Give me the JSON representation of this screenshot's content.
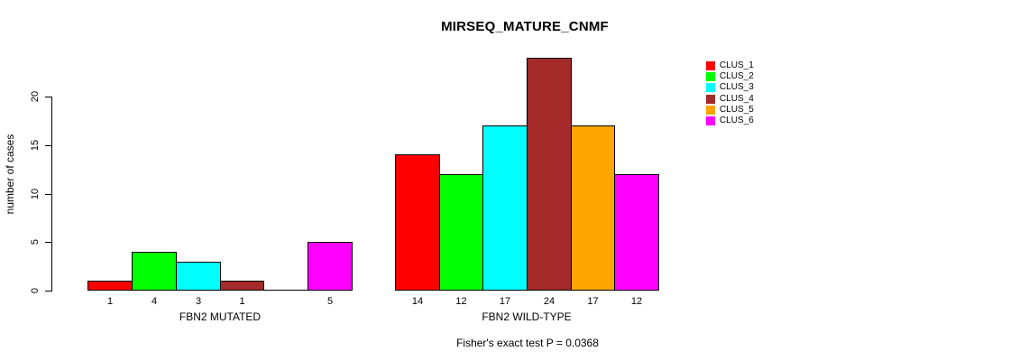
{
  "chart_data": {
    "type": "bar",
    "title": "MIRSEQ_MATURE_CNMF",
    "xlabel": "",
    "ylabel": "number of cases",
    "ylim": [
      0,
      24
    ],
    "y_ticks": [
      0,
      5,
      10,
      15,
      20
    ],
    "grid": false,
    "legend_position": "right-top",
    "series_names": [
      "CLUS_1",
      "CLUS_2",
      "CLUS_3",
      "CLUS_4",
      "CLUS_5",
      "CLUS_6"
    ],
    "series_colors": [
      "#FF0000",
      "#00FF00",
      "#00FFFF",
      "#A52A2A",
      "#FFA500",
      "#FF00FF"
    ],
    "groups": [
      {
        "label": "FBN2 MUTATED",
        "values": [
          1,
          4,
          3,
          1,
          0,
          5
        ],
        "bar_labels": [
          "1",
          "4",
          "3",
          "1",
          "",
          "5"
        ]
      },
      {
        "label": "FBN2 WILD-TYPE",
        "values": [
          14,
          12,
          17,
          24,
          17,
          12
        ],
        "bar_labels": [
          "14",
          "12",
          "17",
          "24",
          "17",
          "12"
        ]
      }
    ],
    "annotation": "Fisher's exact test P = 0.0368"
  }
}
